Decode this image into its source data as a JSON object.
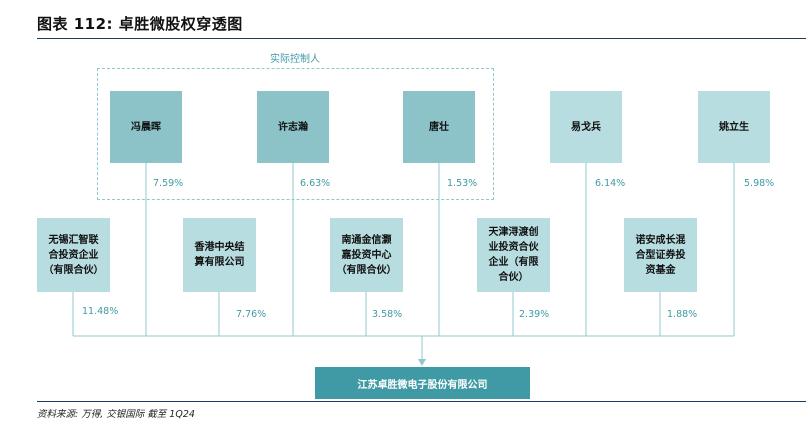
{
  "title": "图表 112: 卓胜微股权穿透图",
  "controller_label": "实际控制人",
  "top_holders": [
    {
      "name": "冯晨晖",
      "pct": "7.59%"
    },
    {
      "name": "许志瀚",
      "pct": "6.63%"
    },
    {
      "name": "唐壮",
      "pct": "1.53%"
    },
    {
      "name": "易戈兵",
      "pct": "6.14%"
    },
    {
      "name": "姚立生",
      "pct": "5.98%"
    }
  ],
  "mid_holders": [
    {
      "name": "无锡汇智联\n合投资企业\n（有限合伙）",
      "pct": "11.48%"
    },
    {
      "name": "香港中央结\n算有限公司",
      "pct": "7.76%"
    },
    {
      "name": "南通金信灏\n嘉投资中心\n（有限合伙）",
      "pct": "3.58%"
    },
    {
      "name": "天津浔渡创\n业投资合伙\n企业（有限\n合伙）",
      "pct": "2.39%"
    },
    {
      "name": "诺安成长混\n合型证券投\n资基金",
      "pct": "1.88%"
    }
  ],
  "company": "江苏卓胜微电子股份有限公司",
  "source": "资料来源: 万得, 交银国际   截至 1Q24",
  "colors": {
    "dark_box": "#8cc3c9",
    "light_box": "#b8dde0",
    "company": "#3f9aa5",
    "line": "#8fc9cf"
  }
}
